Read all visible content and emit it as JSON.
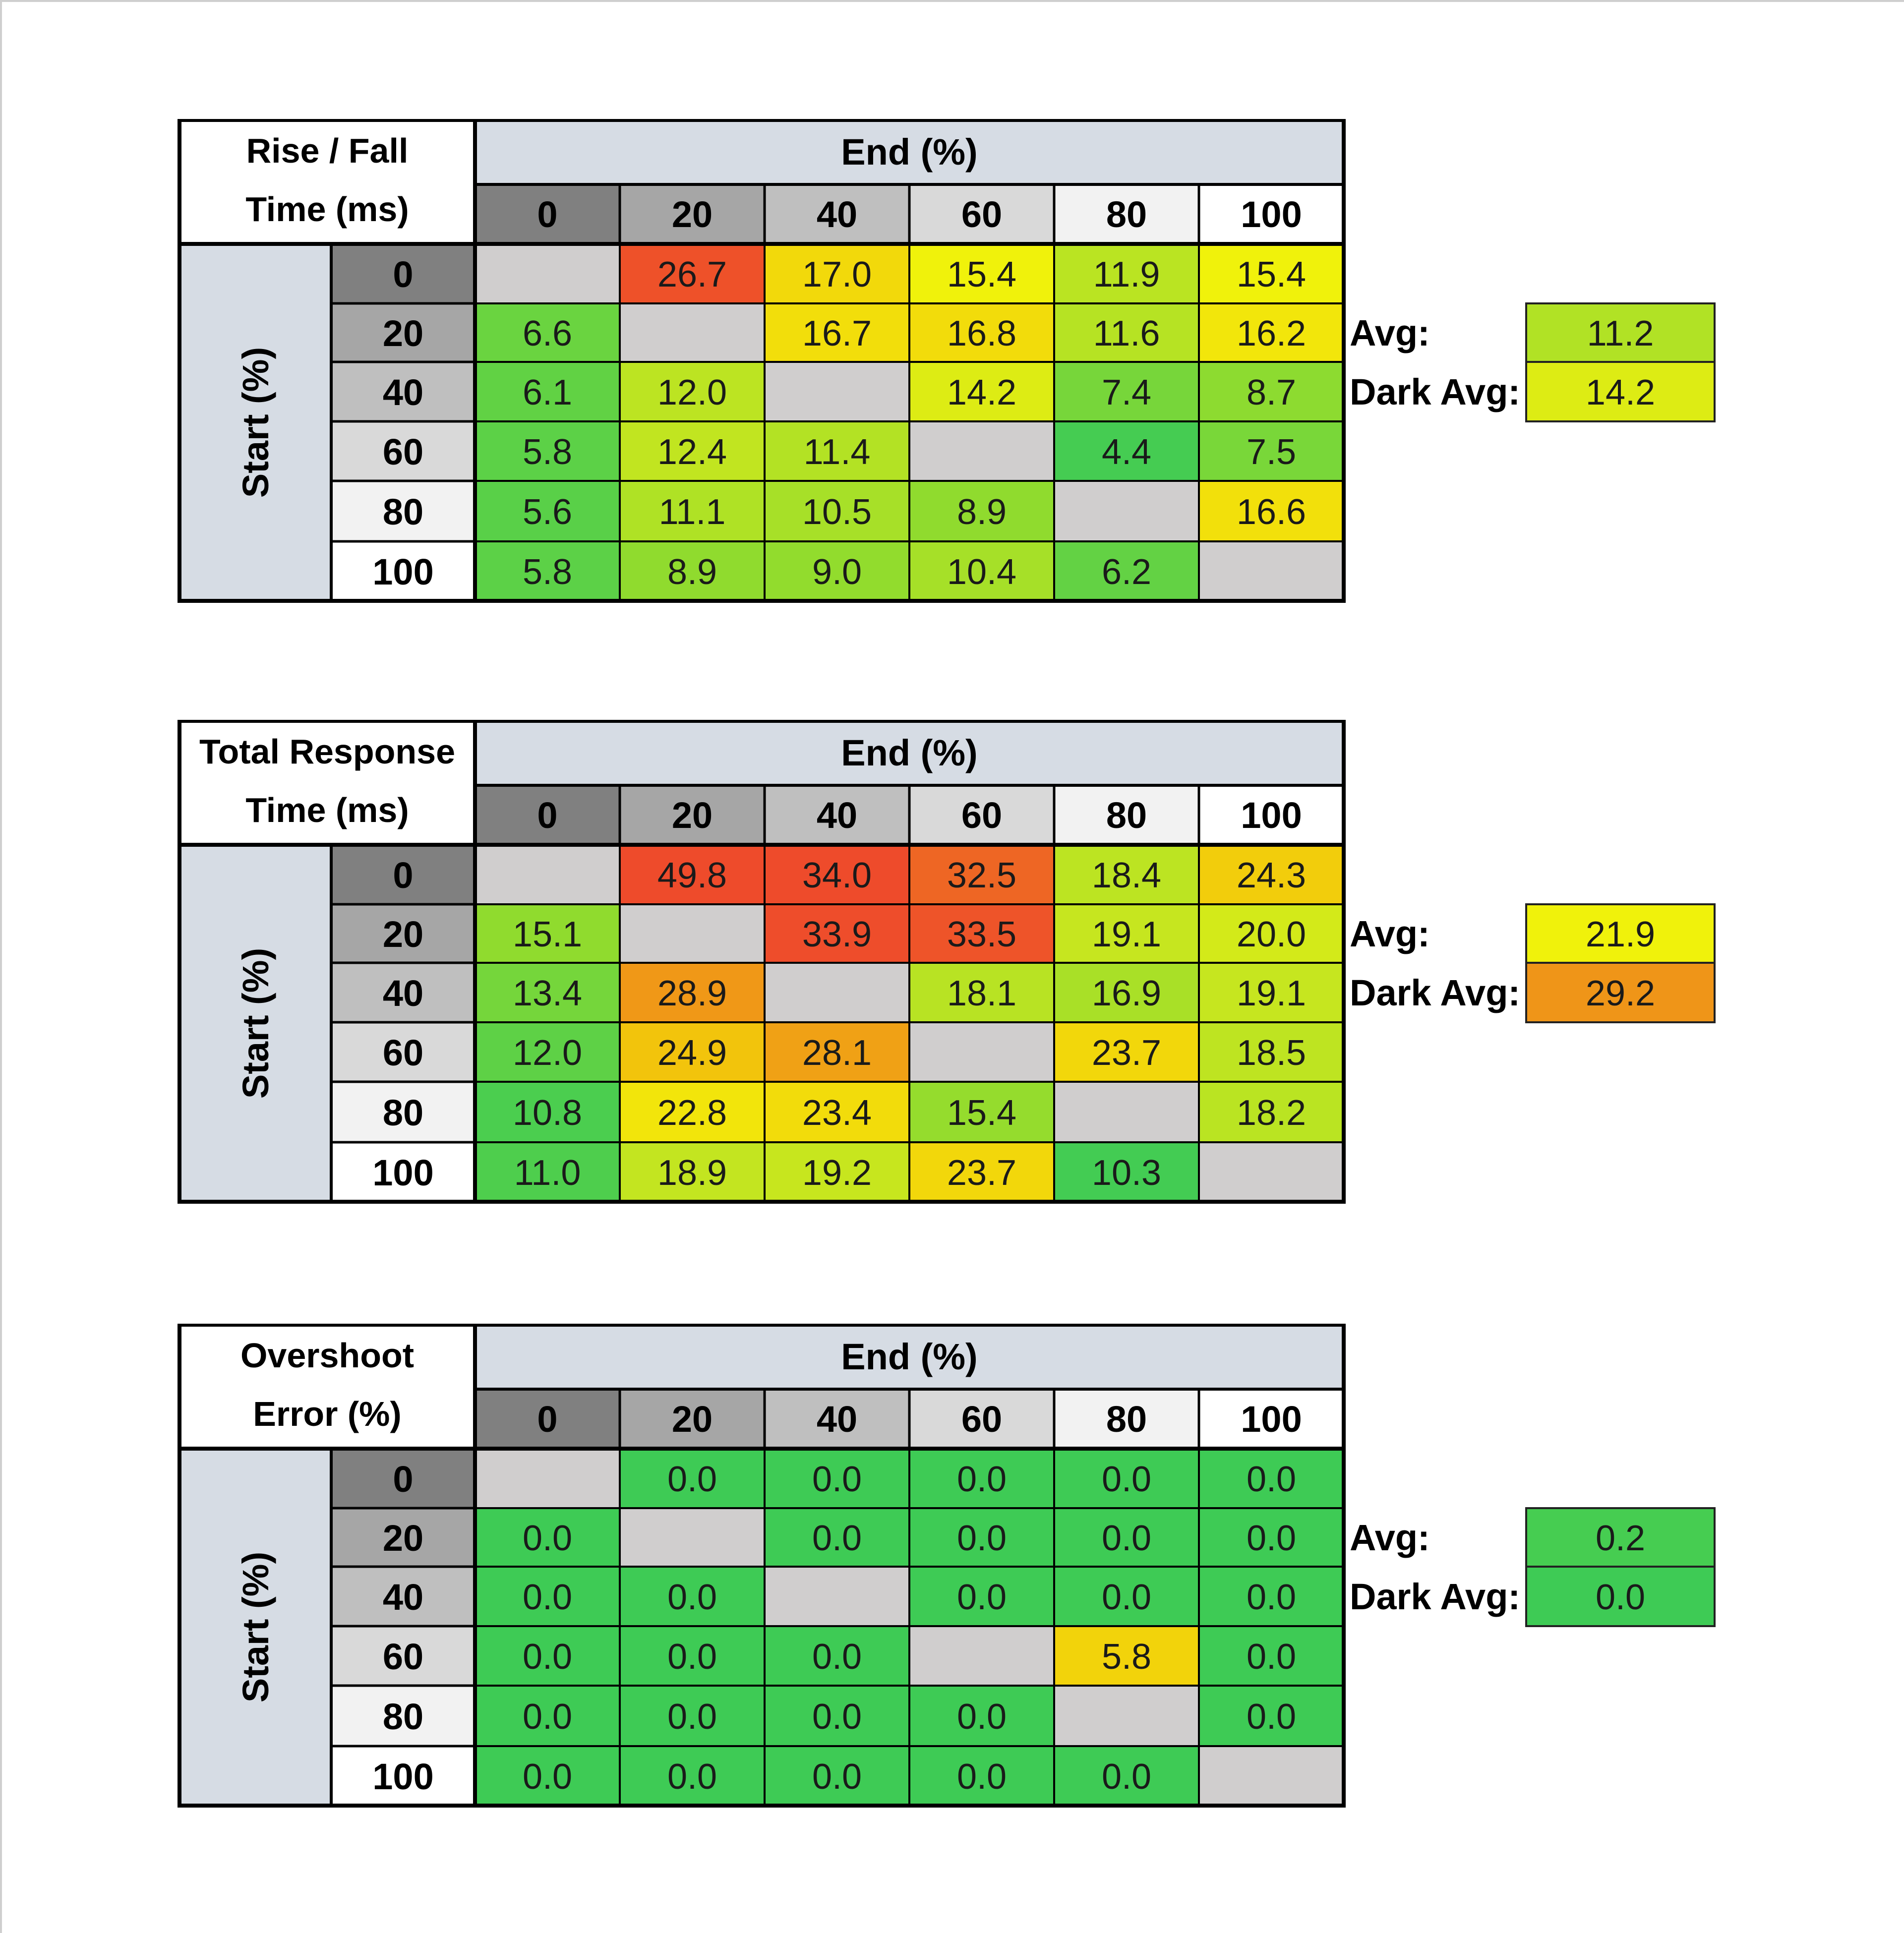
{
  "chart_data": [
    {
      "type": "table",
      "title_lines": [
        "Rise / Fall",
        "Time (ms)"
      ],
      "col_header": "End (%)",
      "row_header": "Start (%)",
      "columns": [
        "0",
        "20",
        "40",
        "60",
        "80",
        "100"
      ],
      "rows": [
        "0",
        "20",
        "40",
        "60",
        "80",
        "100"
      ],
      "values": [
        [
          "",
          "26.7",
          "17.0",
          "15.4",
          "11.9",
          "15.4"
        ],
        [
          "6.6",
          "",
          "16.7",
          "16.8",
          "11.6",
          "16.2"
        ],
        [
          "6.1",
          "12.0",
          "",
          "14.2",
          "7.4",
          "8.7"
        ],
        [
          "5.8",
          "12.4",
          "11.4",
          "",
          "4.4",
          "7.5"
        ],
        [
          "5.6",
          "11.1",
          "10.5",
          "8.9",
          "",
          "16.6"
        ],
        [
          "5.8",
          "8.9",
          "9.0",
          "10.4",
          "6.2",
          ""
        ]
      ],
      "summary": [
        {
          "label": "Avg:",
          "value": "11.2"
        },
        {
          "label": "Dark Avg:",
          "value": "14.2"
        }
      ]
    },
    {
      "type": "table",
      "title_lines": [
        "Total Response",
        "Time (ms)"
      ],
      "col_header": "End (%)",
      "row_header": "Start (%)",
      "columns": [
        "0",
        "20",
        "40",
        "60",
        "80",
        "100"
      ],
      "rows": [
        "0",
        "20",
        "40",
        "60",
        "80",
        "100"
      ],
      "values": [
        [
          "",
          "49.8",
          "34.0",
          "32.5",
          "18.4",
          "24.3"
        ],
        [
          "15.1",
          "",
          "33.9",
          "33.5",
          "19.1",
          "20.0"
        ],
        [
          "13.4",
          "28.9",
          "",
          "18.1",
          "16.9",
          "19.1"
        ],
        [
          "12.0",
          "24.9",
          "28.1",
          "",
          "23.7",
          "18.5"
        ],
        [
          "10.8",
          "22.8",
          "23.4",
          "15.4",
          "",
          "18.2"
        ],
        [
          "11.0",
          "18.9",
          "19.2",
          "23.7",
          "10.3",
          ""
        ]
      ],
      "summary": [
        {
          "label": "Avg:",
          "value": "21.9"
        },
        {
          "label": "Dark Avg:",
          "value": "29.2"
        }
      ]
    },
    {
      "type": "table",
      "title_lines": [
        "Overshoot",
        "Error (%)"
      ],
      "col_header": "End (%)",
      "row_header": "Start (%)",
      "columns": [
        "0",
        "20",
        "40",
        "60",
        "80",
        "100"
      ],
      "rows": [
        "0",
        "20",
        "40",
        "60",
        "80",
        "100"
      ],
      "values": [
        [
          "",
          "0.0",
          "0.0",
          "0.0",
          "0.0",
          "0.0"
        ],
        [
          "0.0",
          "",
          "0.0",
          "0.0",
          "0.0",
          "0.0"
        ],
        [
          "0.0",
          "0.0",
          "",
          "0.0",
          "0.0",
          "0.0"
        ],
        [
          "0.0",
          "0.0",
          "0.0",
          "",
          "5.8",
          "0.0"
        ],
        [
          "0.0",
          "0.0",
          "0.0",
          "0.0",
          "",
          "0.0"
        ],
        [
          "0.0",
          "0.0",
          "0.0",
          "0.0",
          "0.0",
          ""
        ]
      ],
      "summary": [
        {
          "label": "Avg:",
          "value": "0.2"
        },
        {
          "label": "Dark Avg:",
          "value": "0.0"
        }
      ]
    }
  ],
  "colors": {
    "header_band": "#d6dce4",
    "diagonal": "#d0cece",
    "grid": "#000000",
    "level_shades": [
      "#808080",
      "#a6a6a6",
      "#bfbfbf",
      "#d9d9d9",
      "#f2f2f2",
      "#ffffff"
    ]
  }
}
